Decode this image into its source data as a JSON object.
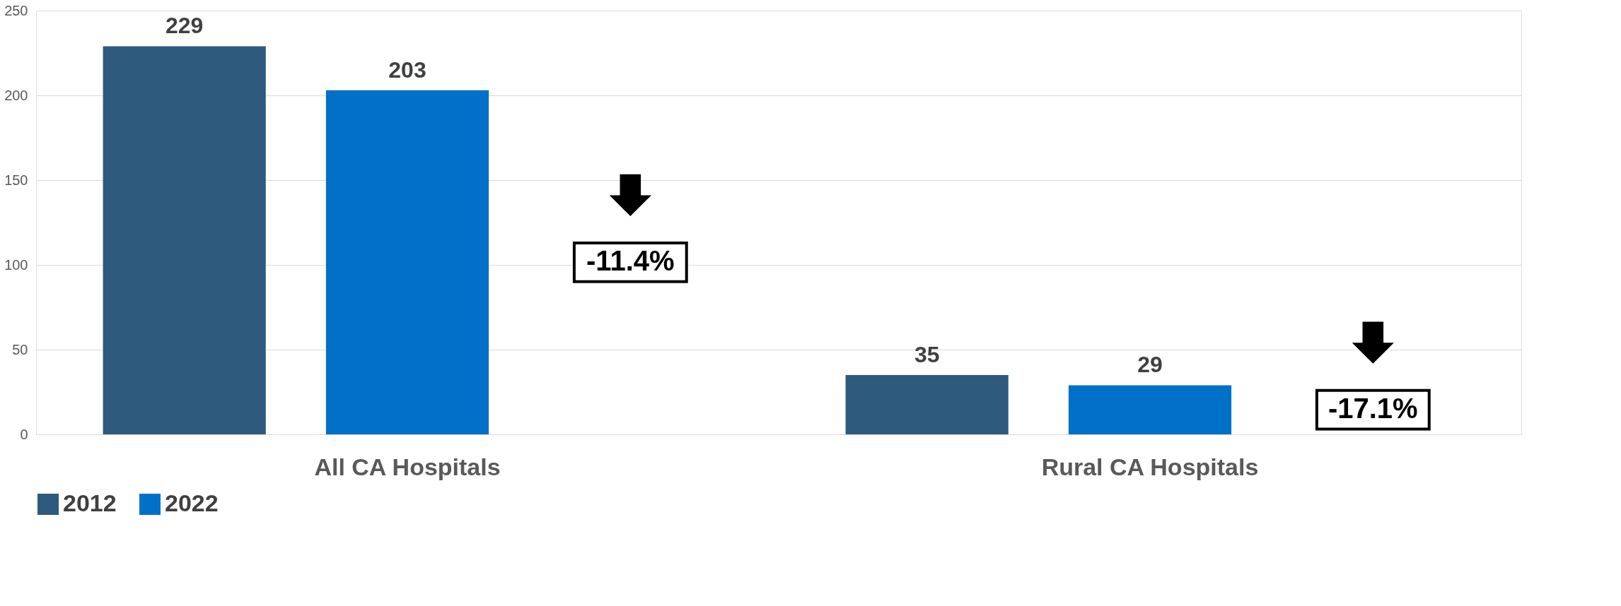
{
  "chart_data": {
    "type": "bar",
    "categories": [
      "All CA Hospitals",
      "Rural CA Hospitals"
    ],
    "series": [
      {
        "name": "2012",
        "color": "#2e5a7e",
        "values": [
          229,
          35
        ]
      },
      {
        "name": "2022",
        "color": "#0070c8",
        "values": [
          203,
          29
        ]
      }
    ],
    "ylim": [
      0,
      250
    ],
    "yticks": [
      0,
      50,
      100,
      150,
      200,
      250
    ],
    "grid": "y",
    "legend": "bottom",
    "data_labels": true,
    "annotations": [
      "-11.4%",
      "-17.1%"
    ]
  }
}
